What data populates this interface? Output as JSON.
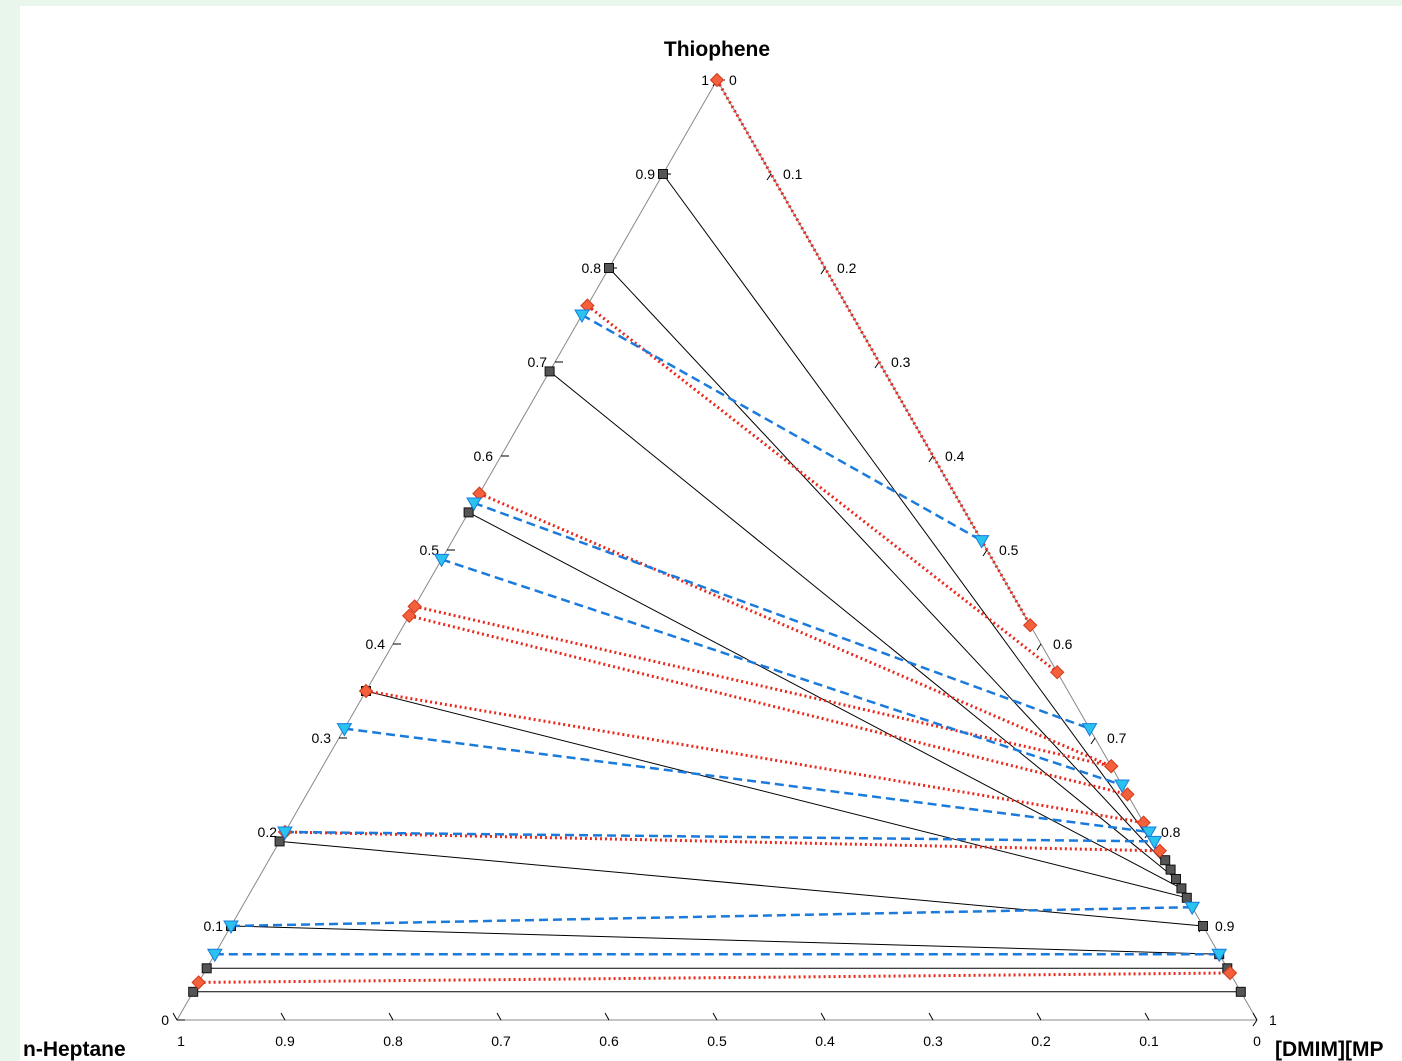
{
  "chart_data": {
    "type": "ternary",
    "vertex_labels": {
      "top": "Thiophene",
      "left": "n-Heptane",
      "right": "[DMIM][MP"
    },
    "axis_ticks": {
      "left_edge": [
        "0",
        "0.1",
        "0.2",
        "0.3",
        "0.4",
        "0.5",
        "0.6",
        "0.7",
        "0.8",
        "0.9",
        "1"
      ],
      "right_edge": [
        "0",
        "0.1",
        "0.2",
        "0.3",
        "0.4",
        "0.5",
        "0.6",
        "0.7",
        "0.8",
        "0.9",
        "1"
      ],
      "bottom_edge": [
        "1",
        "0.9",
        "0.8",
        "0.7",
        "0.6",
        "0.5",
        "0.4",
        "0.3",
        "0.2",
        "0.1",
        "0"
      ]
    },
    "component_order": [
      "Thiophene",
      "n-Heptane",
      "[DMIM][MP"
    ],
    "series": [
      {
        "style": "solid-black",
        "color": "#000000",
        "marker": "square",
        "marker_color": "#555555",
        "tie_lines": [
          {
            "raffinate": [
              0.9,
              0.1,
              0.0
            ],
            "extract": [
              0.17,
              0.0,
              0.83
            ]
          },
          {
            "raffinate": [
              0.8,
              0.2,
              0.0
            ],
            "extract": [
              0.16,
              0.0,
              0.84
            ]
          },
          {
            "raffinate": [
              0.69,
              0.31,
              0.0
            ],
            "extract": [
              0.15,
              0.0,
              0.85
            ]
          },
          {
            "raffinate": [
              0.54,
              0.46,
              0.0
            ],
            "extract": [
              0.14,
              0.0,
              0.86
            ]
          },
          {
            "raffinate": [
              0.35,
              0.65,
              0.0
            ],
            "extract": [
              0.13,
              0.0,
              0.87
            ]
          },
          {
            "raffinate": [
              0.19,
              0.81,
              0.0
            ],
            "extract": [
              0.1,
              0.0,
              0.9
            ]
          },
          {
            "raffinate": [
              0.1,
              0.9,
              0.0
            ],
            "extract": [
              0.07,
              0.0,
              0.93
            ]
          },
          {
            "raffinate": [
              0.055,
              0.945,
              0.0
            ],
            "extract": [
              0.055,
              0.0,
              0.945
            ]
          },
          {
            "raffinate": [
              0.03,
              0.97,
              0.0
            ],
            "extract": [
              0.03,
              0.0,
              0.97
            ]
          }
        ]
      },
      {
        "style": "dotted-red",
        "color": "#e8291c",
        "marker": "diamond",
        "marker_color": "#f4603c",
        "tie_lines": [
          {
            "raffinate": [
              1.0,
              0.0,
              0.0
            ],
            "extract": [
              0.42,
              0.0,
              0.58
            ]
          },
          {
            "raffinate": [
              0.76,
              0.24,
              0.0
            ],
            "extract": [
              0.37,
              0.0,
              0.63
            ]
          },
          {
            "raffinate": [
              0.56,
              0.44,
              0.0
            ],
            "extract": [
              0.27,
              0.0,
              0.73
            ]
          },
          {
            "raffinate": [
              0.44,
              0.56,
              0.0
            ],
            "extract": [
              0.27,
              0.0,
              0.73
            ]
          },
          {
            "raffinate": [
              0.43,
              0.57,
              0.0
            ],
            "extract": [
              0.24,
              0.0,
              0.76
            ]
          },
          {
            "raffinate": [
              0.35,
              0.65,
              0.0
            ],
            "extract": [
              0.21,
              0.0,
              0.79
            ]
          },
          {
            "raffinate": [
              0.2,
              0.8,
              0.0
            ],
            "extract": [
              0.18,
              0.0,
              0.82
            ]
          },
          {
            "raffinate": [
              0.04,
              0.96,
              0.0
            ],
            "extract": [
              0.05,
              0.0,
              0.95
            ]
          }
        ]
      },
      {
        "style": "dashed-blue",
        "color": "#1a7bdc",
        "marker": "triangle-down",
        "marker_color": "#2ac3f0",
        "tie_lines": [
          {
            "raffinate": [
              0.75,
              0.25,
              0.0
            ],
            "extract": [
              0.51,
              0.0,
              0.49
            ]
          },
          {
            "raffinate": [
              0.55,
              0.45,
              0.0
            ],
            "extract": [
              0.31,
              0.0,
              0.69
            ]
          },
          {
            "raffinate": [
              0.49,
              0.51,
              0.0
            ],
            "extract": [
              0.25,
              0.0,
              0.75
            ]
          },
          {
            "raffinate": [
              0.31,
              0.69,
              0.0
            ],
            "extract": [
              0.2,
              0.0,
              0.8
            ]
          },
          {
            "raffinate": [
              0.2,
              0.8,
              0.0
            ],
            "extract": [
              0.19,
              0.0,
              0.81
            ]
          },
          {
            "raffinate": [
              0.1,
              0.9,
              0.0
            ],
            "extract": [
              0.12,
              0.0,
              0.88
            ]
          },
          {
            "raffinate": [
              0.07,
              0.93,
              0.0
            ],
            "extract": [
              0.07,
              0.0,
              0.93
            ]
          }
        ]
      }
    ]
  }
}
